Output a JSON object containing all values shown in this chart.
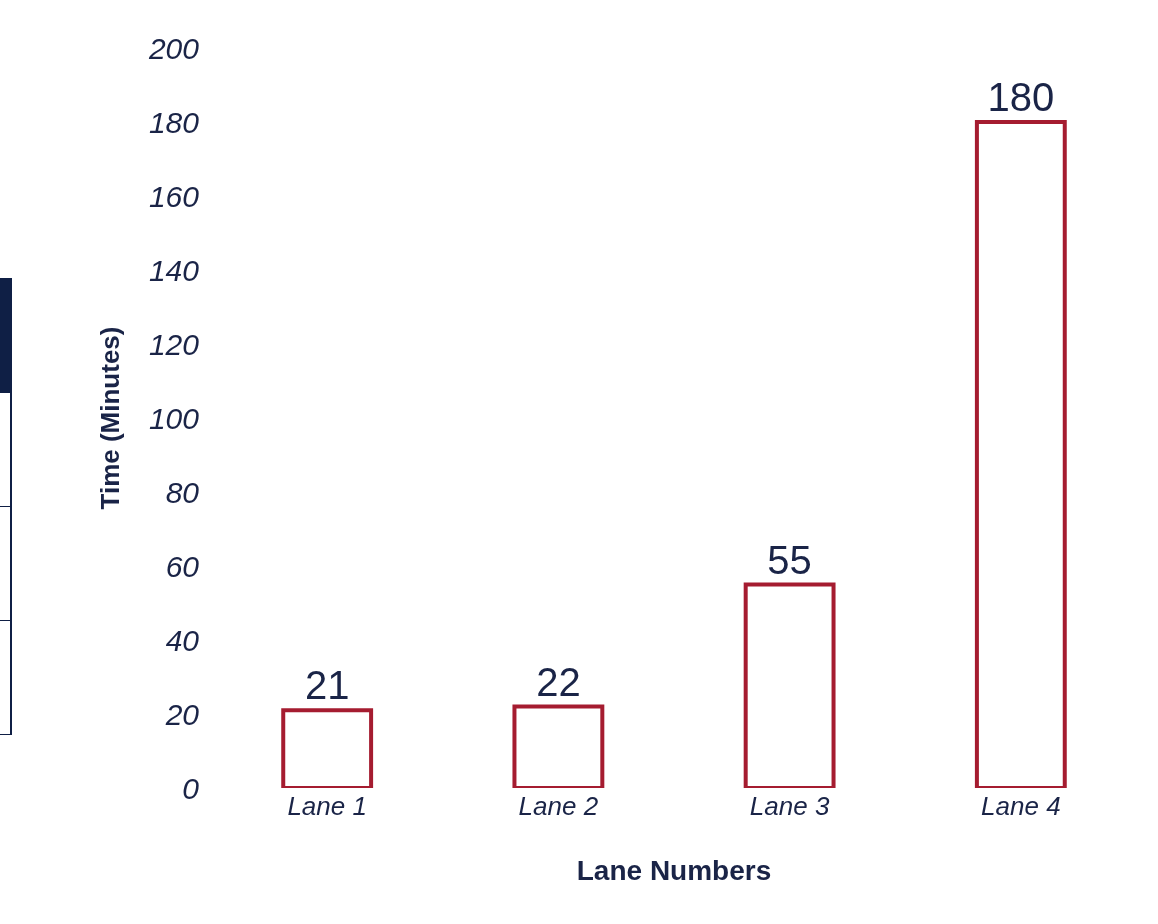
{
  "chart_data": {
    "type": "bar",
    "xlabel": "Lane Numbers",
    "ylabel": "Time (Minutes)",
    "categories": [
      "Lane 1",
      "Lane 2",
      "Lane 3",
      "Lane 4"
    ],
    "values": [
      21,
      22,
      55,
      180
    ],
    "color": "#a51c30",
    "ylim": [
      0,
      200
    ],
    "yticks": [
      0,
      20,
      40,
      60,
      80,
      100,
      120,
      140,
      160,
      180,
      200
    ],
    "data_labels": true
  }
}
